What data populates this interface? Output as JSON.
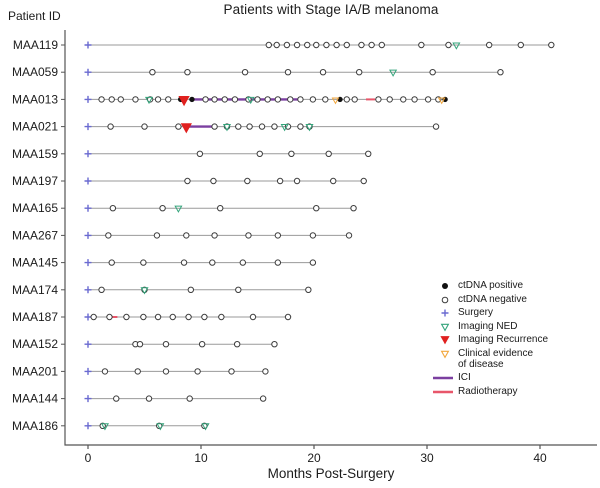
{
  "chart_data": {
    "type": "swimmer",
    "title": "Patients with Stage IA/B melanoma",
    "xlabel": "Months Post-Surgery",
    "ylabel": "Patient ID",
    "xlim": [
      0,
      42
    ],
    "xticks": [
      0,
      10,
      20,
      30,
      40
    ],
    "grid": false,
    "legend_position": "right-lower",
    "colors": {
      "axis": "#555555",
      "track": "#9a9a9a",
      "ctdna_positive": "#111111",
      "ctdna_negative_stroke": "#3d3d3d",
      "surgery": "#6a6ad1",
      "imaging_ned": "#34a47b",
      "imaging_recurrence": "#e0211f",
      "clinical_evidence": "#f2a73d",
      "ici": "#7b3fa0",
      "radiotherapy": "#e8566a"
    },
    "patients": [
      {
        "id": "MAA119",
        "end": 41.0,
        "neg": [
          16,
          16.7,
          17.6,
          18.5,
          19.4,
          20.2,
          21.1,
          22,
          22.9,
          24.2,
          25.1,
          26,
          29.5,
          31.9,
          35.5,
          38.3,
          41
        ],
        "pos": [],
        "ned": [
          32.6
        ],
        "clin": [],
        "rec": [],
        "ici": null,
        "radio": null
      },
      {
        "id": "MAA059",
        "end": 36.5,
        "neg": [
          5.7,
          8.8,
          13.9,
          17.7,
          20.8,
          24,
          30.5,
          36.5
        ],
        "pos": [],
        "ned": [
          27
        ],
        "clin": [],
        "rec": [],
        "ici": null,
        "radio": null
      },
      {
        "id": "MAA013",
        "end": 31.6,
        "neg": [
          1.2,
          2.1,
          2.9,
          4.2,
          5.5,
          6.2,
          7.1,
          10.4,
          11.2,
          12.1,
          13,
          14.2,
          15,
          15.9,
          16.8,
          17.9,
          18.8,
          19.9,
          21,
          22.9,
          23.6,
          25.7,
          26.7,
          27.9,
          28.9,
          30.1,
          31
        ],
        "pos": [
          8.2,
          9.2,
          22.3,
          31.6
        ],
        "ned": [
          5.4,
          14.4
        ],
        "clin": [
          21.9,
          31.3
        ],
        "rec": [
          8.5
        ],
        "ici": [
          9.4,
          18.9
        ],
        "radio": [
          24.6,
          25.4
        ]
      },
      {
        "id": "MAA021",
        "end": 30.8,
        "neg": [
          2,
          5,
          8,
          11.2,
          12.3,
          13.3,
          14.3,
          15.4,
          16.5,
          17.7,
          18.8,
          19.6,
          30.8
        ],
        "pos": [],
        "ned": [
          12.3,
          17.4,
          19.6
        ],
        "clin": [],
        "rec": [
          8.7
        ],
        "ici": [
          8.9,
          11.2
        ],
        "radio": null
      },
      {
        "id": "MAA159",
        "end": 24.8,
        "neg": [
          9.9,
          15.2,
          18,
          21.3,
          24.8
        ],
        "pos": [],
        "ned": [],
        "clin": [],
        "rec": [],
        "ici": null,
        "radio": null
      },
      {
        "id": "MAA197",
        "end": 24.4,
        "neg": [
          8.8,
          11.1,
          14.1,
          17,
          18.5,
          21.7,
          24.4
        ],
        "pos": [],
        "ned": [],
        "clin": [],
        "rec": [],
        "ici": null,
        "radio": null
      },
      {
        "id": "MAA165",
        "end": 23.5,
        "neg": [
          2.2,
          6.6,
          11.7,
          20.2,
          23.5
        ],
        "pos": [],
        "ned": [
          8
        ],
        "clin": [],
        "rec": [],
        "ici": null,
        "radio": null
      },
      {
        "id": "MAA267",
        "end": 23.1,
        "neg": [
          1.8,
          6.1,
          8.7,
          11.2,
          14.2,
          16.8,
          19.9,
          23.1
        ],
        "pos": [],
        "ned": [],
        "clin": [],
        "rec": [],
        "ici": null,
        "radio": null
      },
      {
        "id": "MAA145",
        "end": 19.9,
        "neg": [
          2.1,
          4.9,
          8.5,
          11,
          13.7,
          16.8,
          19.9
        ],
        "pos": [],
        "ned": [],
        "clin": [],
        "rec": [],
        "ici": null,
        "radio": null
      },
      {
        "id": "MAA174",
        "end": 19.5,
        "neg": [
          1.2,
          5,
          9.1,
          13.3,
          19.5
        ],
        "pos": [],
        "ned": [
          5
        ],
        "clin": [],
        "rec": [],
        "ici": null,
        "radio": null
      },
      {
        "id": "MAA187",
        "end": 17.7,
        "neg": [
          0.5,
          1.9,
          3.4,
          4.9,
          6.2,
          7.5,
          8.9,
          10.3,
          11.8,
          14.6,
          17.7
        ],
        "pos": [],
        "ned": [],
        "clin": [],
        "rec": [],
        "ici": null,
        "radio": [
          2,
          2.6
        ]
      },
      {
        "id": "MAA152",
        "end": 16.5,
        "neg": [
          4.2,
          4.6,
          6.9,
          10.1,
          13.2,
          16.5
        ],
        "pos": [],
        "ned": [],
        "clin": [],
        "rec": [],
        "ici": null,
        "radio": null
      },
      {
        "id": "MAA201",
        "end": 15.7,
        "neg": [
          1.5,
          4.4,
          6.9,
          9.7,
          12.7,
          15.7
        ],
        "pos": [],
        "ned": [],
        "clin": [],
        "rec": [],
        "ici": null,
        "radio": null
      },
      {
        "id": "MAA144",
        "end": 15.5,
        "neg": [
          2.5,
          5.4,
          9,
          15.5
        ],
        "pos": [],
        "ned": [],
        "clin": [],
        "rec": [],
        "ici": null,
        "radio": null
      },
      {
        "id": "MAA186",
        "end": 10.3,
        "neg": [
          1.3,
          6.3,
          10.3
        ],
        "pos": [],
        "ned": [
          1.5,
          6.4,
          10.4
        ],
        "clin": [],
        "rec": [],
        "ici": null,
        "radio": null
      }
    ],
    "legend": [
      {
        "label": "ctDNA positive",
        "marker": "filled-circle",
        "color": "#111111"
      },
      {
        "label": "ctDNA negative",
        "marker": "open-circle",
        "color": "#3d3d3d"
      },
      {
        "label": "Surgery",
        "marker": "plus",
        "color": "#6a6ad1"
      },
      {
        "label": "Imaging NED",
        "marker": "open-triangle-down",
        "color": "#34a47b"
      },
      {
        "label": "Imaging Recurrence",
        "marker": "filled-triangle-down",
        "color": "#e0211f"
      },
      {
        "label": "Clinical evidence\nof disease",
        "marker": "open-triangle-down",
        "color": "#f2a73d"
      },
      {
        "label": "ICI",
        "marker": "line",
        "color": "#7b3fa0"
      },
      {
        "label": "Radiotherapy",
        "marker": "line",
        "color": "#e8566a"
      }
    ]
  }
}
